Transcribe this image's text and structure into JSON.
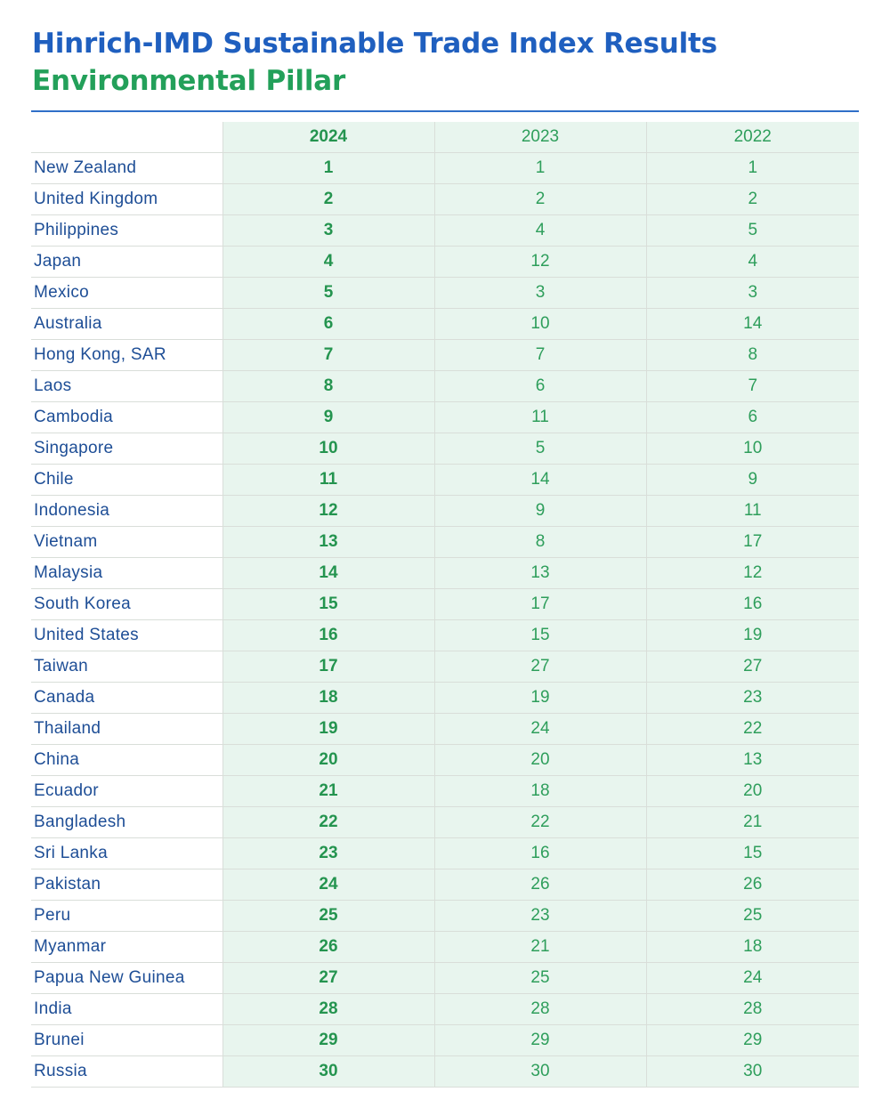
{
  "header": {
    "title": "Hinrich-IMD Sustainable Trade Index Results",
    "subtitle": "Environmental Pillar"
  },
  "table": {
    "columns": [
      "",
      "2024",
      "2023",
      "2022"
    ],
    "rows": [
      {
        "country": "New Zealand",
        "r2024": "1",
        "r2023": "1",
        "r2022": "1"
      },
      {
        "country": "United Kingdom",
        "r2024": "2",
        "r2023": "2",
        "r2022": "2"
      },
      {
        "country": "Philippines",
        "r2024": "3",
        "r2023": "4",
        "r2022": "5"
      },
      {
        "country": "Japan",
        "r2024": "4",
        "r2023": "12",
        "r2022": "4"
      },
      {
        "country": "Mexico",
        "r2024": "5",
        "r2023": "3",
        "r2022": "3"
      },
      {
        "country": "Australia",
        "r2024": "6",
        "r2023": "10",
        "r2022": "14"
      },
      {
        "country": "Hong Kong, SAR",
        "r2024": "7",
        "r2023": "7",
        "r2022": "8"
      },
      {
        "country": "Laos",
        "r2024": "8",
        "r2023": "6",
        "r2022": "7"
      },
      {
        "country": "Cambodia",
        "r2024": "9",
        "r2023": "11",
        "r2022": "6"
      },
      {
        "country": "Singapore",
        "r2024": "10",
        "r2023": "5",
        "r2022": "10"
      },
      {
        "country": "Chile",
        "r2024": "11",
        "r2023": "14",
        "r2022": "9"
      },
      {
        "country": "Indonesia",
        "r2024": "12",
        "r2023": "9",
        "r2022": "11"
      },
      {
        "country": "Vietnam",
        "r2024": "13",
        "r2023": "8",
        "r2022": "17"
      },
      {
        "country": "Malaysia",
        "r2024": "14",
        "r2023": "13",
        "r2022": "12"
      },
      {
        "country": "South Korea",
        "r2024": "15",
        "r2023": "17",
        "r2022": "16"
      },
      {
        "country": "United States",
        "r2024": "16",
        "r2023": "15",
        "r2022": "19"
      },
      {
        "country": "Taiwan",
        "r2024": "17",
        "r2023": "27",
        "r2022": "27"
      },
      {
        "country": "Canada",
        "r2024": "18",
        "r2023": "19",
        "r2022": "23"
      },
      {
        "country": "Thailand",
        "r2024": "19",
        "r2023": "24",
        "r2022": "22"
      },
      {
        "country": "China",
        "r2024": "20",
        "r2023": "20",
        "r2022": "13"
      },
      {
        "country": "Ecuador",
        "r2024": "21",
        "r2023": "18",
        "r2022": "20"
      },
      {
        "country": "Bangladesh",
        "r2024": "22",
        "r2023": "22",
        "r2022": "21"
      },
      {
        "country": "Sri Lanka",
        "r2024": "23",
        "r2023": "16",
        "r2022": "15"
      },
      {
        "country": "Pakistan",
        "r2024": "24",
        "r2023": "26",
        "r2022": "26"
      },
      {
        "country": "Peru",
        "r2024": "25",
        "r2023": "23",
        "r2022": "25"
      },
      {
        "country": "Myanmar",
        "r2024": "26",
        "r2023": "21",
        "r2022": "18"
      },
      {
        "country": "Papua New Guinea",
        "r2024": "27",
        "r2023": "25",
        "r2022": "24"
      },
      {
        "country": "India",
        "r2024": "28",
        "r2023": "28",
        "r2022": "28"
      },
      {
        "country": "Brunei",
        "r2024": "29",
        "r2023": "29",
        "r2022": "29"
      },
      {
        "country": "Russia",
        "r2024": "30",
        "r2023": "30",
        "r2022": "30"
      }
    ]
  },
  "colors": {
    "title_blue": "#1f5fbf",
    "subtitle_green": "#23a05a",
    "country_text": "#1e4e96",
    "rank_text": "#2e9e5b",
    "column_fill": "#e8f5ee",
    "rule": "#2f6fc8"
  }
}
